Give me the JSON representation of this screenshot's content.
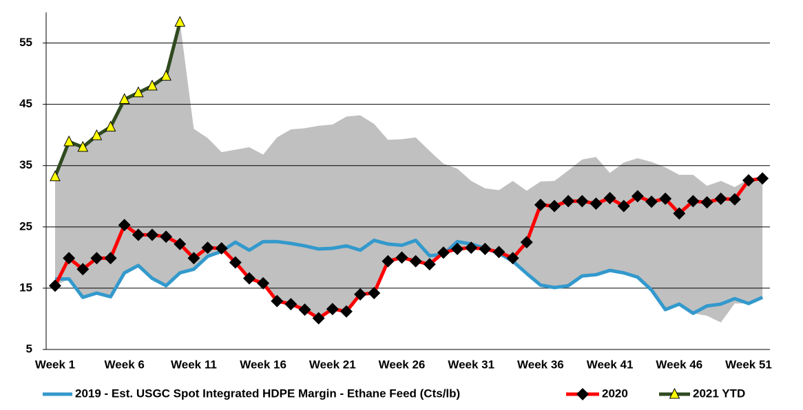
{
  "chart_data": {
    "type": "line",
    "categories": [
      "Week 1",
      null,
      null,
      null,
      null,
      "Week 6",
      null,
      null,
      null,
      null,
      "Week 11",
      null,
      null,
      null,
      null,
      "Week 16",
      null,
      null,
      null,
      null,
      "Week 21",
      null,
      null,
      null,
      null,
      "Week 26",
      null,
      null,
      null,
      null,
      "Week 31",
      null,
      null,
      null,
      null,
      "Week 36",
      null,
      null,
      null,
      null,
      "Week 41",
      null,
      null,
      null,
      null,
      "Week 46",
      null,
      null,
      null,
      null,
      "Week 51",
      null
    ],
    "ylim": [
      5,
      60
    ],
    "yticks": [
      5,
      15,
      25,
      35,
      45,
      55
    ],
    "grid": true,
    "legend": "bottom",
    "range": {
      "color": "#c0c0c0",
      "upper": [
        33.2,
        39,
        38,
        40,
        41.3,
        46,
        47,
        48,
        49.6,
        58.4,
        41,
        39.5,
        37.2,
        37.6,
        38,
        36.8,
        39.6,
        40.9,
        41.1,
        41.5,
        41.7,
        43,
        43.2,
        41.8,
        39.2,
        39.3,
        39.6,
        37.4,
        35.3,
        34.5,
        32.5,
        31.3,
        31,
        32.5,
        30.9,
        32.4,
        32.5,
        34.2,
        36,
        36.4,
        33.8,
        35.5,
        36.2,
        35.6,
        34.7,
        33.5,
        33.5,
        31.7,
        32.5,
        31.5,
        32.8,
        33
      ],
      "lower": [
        15.4,
        16.5,
        13.5,
        14.2,
        13.6,
        17.5,
        18.7,
        16.6,
        15.4,
        17.5,
        18.1,
        20.2,
        21,
        19.2,
        16.6,
        15.8,
        12.9,
        12.4,
        11.5,
        10.1,
        11.6,
        11.2,
        14,
        14.2,
        19.4,
        20,
        19.4,
        18.9,
        20.5,
        21.4,
        21.6,
        21.4,
        20.7,
        19.4,
        17.4,
        15.5,
        15.1,
        15.4,
        17,
        17.2,
        17.9,
        17.5,
        16.8,
        14.7,
        11.5,
        12.4,
        10.9,
        10.5,
        9.4,
        12.5,
        12.5,
        13.5
      ]
    },
    "series": [
      {
        "name": "2019 - Est. USGC Spot Integrated HDPE Margin - Ethane Feed (Cts/lb)",
        "color": "#3399cc",
        "marker": "none",
        "values": [
          16.5,
          16.5,
          13.5,
          14.2,
          13.6,
          17.5,
          18.7,
          16.6,
          15.4,
          17.5,
          18.1,
          20.2,
          21,
          22.5,
          21.2,
          22.6,
          22.6,
          22.3,
          21.9,
          21.4,
          21.5,
          21.9,
          21.2,
          22.8,
          22.2,
          22,
          22.8,
          20.3,
          20.5,
          22.6,
          22.2,
          21.5,
          20.7,
          19.4,
          17.4,
          15.5,
          15.1,
          15.4,
          17,
          17.2,
          17.9,
          17.5,
          16.8,
          14.7,
          11.5,
          12.4,
          10.9,
          12.1,
          12.4,
          13.3,
          12.5,
          13.5
        ]
      },
      {
        "name": "2020",
        "color": "#ff0000",
        "marker": "diamond",
        "values": [
          15.4,
          19.9,
          18.1,
          19.9,
          19.9,
          25.3,
          23.7,
          23.7,
          23.4,
          22.2,
          19.9,
          21.6,
          21.5,
          19.2,
          16.6,
          15.8,
          12.9,
          12.4,
          11.5,
          10.1,
          11.6,
          11.2,
          14,
          14.2,
          19.4,
          20,
          19.4,
          18.9,
          20.8,
          21.4,
          21.6,
          21.4,
          20.9,
          19.9,
          22.5,
          28.6,
          28.4,
          29.2,
          29.2,
          28.8,
          29.7,
          28.4,
          30,
          29.1,
          29.6,
          27.2,
          29.2,
          29,
          29.6,
          29.5,
          32.6,
          32.9
        ]
      },
      {
        "name": "2021 YTD",
        "color": "#2f4a1f",
        "marker": "triangle",
        "values": [
          33.2,
          38.9,
          38,
          39.9,
          41.3,
          45.8,
          46.9,
          48,
          49.6,
          58.4,
          null,
          null,
          null,
          null,
          null,
          null,
          null,
          null,
          null,
          null,
          null,
          null,
          null,
          null,
          null,
          null,
          null,
          null,
          null,
          null,
          null,
          null,
          null,
          null,
          null,
          null,
          null,
          null,
          null,
          null,
          null,
          null,
          null,
          null,
          null,
          null,
          null,
          null,
          null,
          null,
          null,
          null
        ]
      }
    ]
  }
}
